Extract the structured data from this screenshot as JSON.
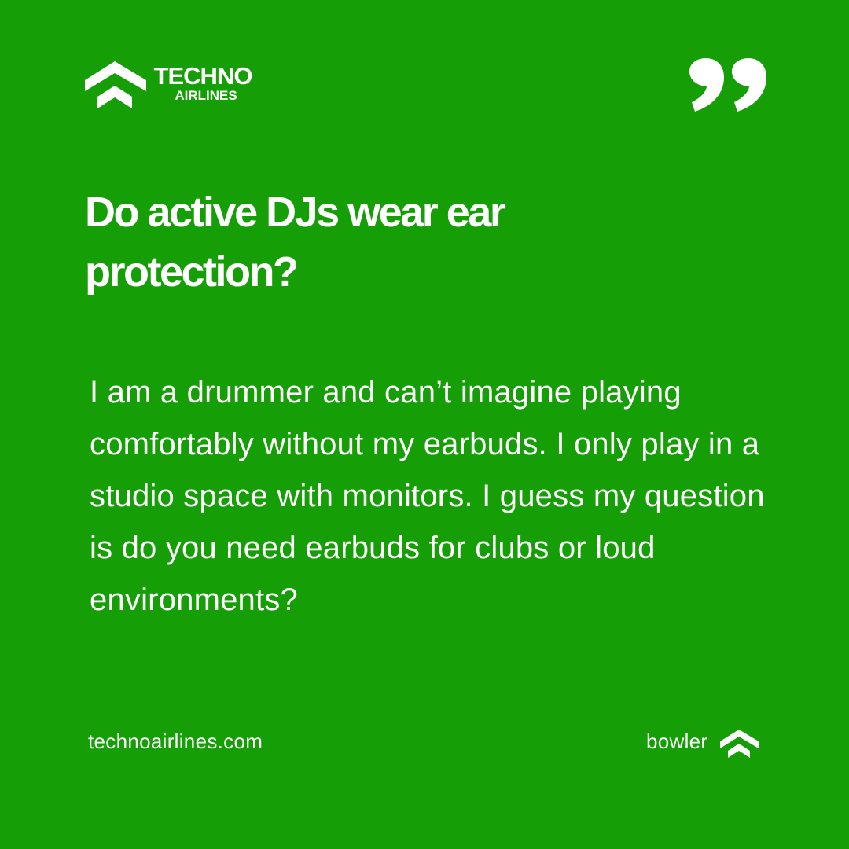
{
  "brand": {
    "name_line1": "TECHNO",
    "name_line2": "AIRLINES",
    "logo_icon": "chevron-wing-icon",
    "background_color": "#159e05",
    "text_color": "#ffffff"
  },
  "quote_icon": "quote-marks-icon",
  "headline": "Do active DJs wear ear protection?",
  "body": "I am a drummer and can’t imagine playing comfortably without my earbuds. I only play in a studio space with monitors. I guess my question is do you need earbuds for clubs or loud environments?",
  "footer": {
    "website": "technoairlines.com",
    "author": "bowler",
    "author_icon": "chevron-wing-icon"
  }
}
